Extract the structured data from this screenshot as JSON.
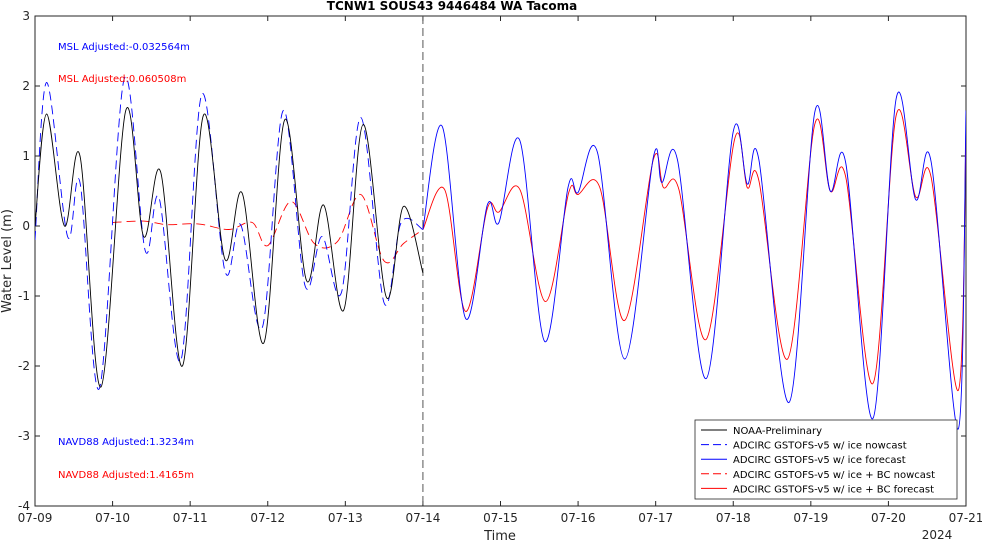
{
  "chart_data": {
    "type": "line",
    "title": "TCNW1 SOUS43 9446484 WA Tacoma",
    "xlabel": "Time",
    "ylabel": "Water Level (m)",
    "ylim": [
      -4,
      3
    ],
    "xlim": [
      0,
      12
    ],
    "x_tick_labels": [
      "07-09",
      "07-10",
      "07-11",
      "07-12",
      "07-13",
      "07-14",
      "07-15",
      "07-16",
      "07-17",
      "07-18",
      "07-19",
      "07-20",
      "07-21"
    ],
    "y_ticks": [
      -4,
      -3,
      -2,
      -1,
      0,
      1,
      2,
      3
    ],
    "year_label": "2024",
    "nowcast_end_x": 5,
    "grid": false,
    "legend_position": "bottom-right",
    "annotations": [
      {
        "text": "MSL Adjusted:-0.032564m",
        "color": "#0000ff"
      },
      {
        "text": "MSL Adjusted:0.060508m",
        "color": "#ff0000"
      },
      {
        "text": "NAVD88 Adjusted:1.3234m",
        "color": "#0000ff"
      },
      {
        "text": "NAVD88 Adjusted:1.4165m",
        "color": "#ff0000"
      }
    ],
    "series": [
      {
        "name": "NOAA-Preliminary",
        "color": "#000000",
        "dash": false,
        "x_start": 0,
        "x_end": 5,
        "points": [
          [
            0,
            0.0
          ],
          [
            0.15,
            1.6
          ],
          [
            0.38,
            0.0
          ],
          [
            0.58,
            1.0
          ],
          [
            0.85,
            -2.3
          ],
          [
            1.17,
            1.65
          ],
          [
            1.4,
            -0.15
          ],
          [
            1.62,
            0.77
          ],
          [
            1.9,
            -2.0
          ],
          [
            2.17,
            1.58
          ],
          [
            2.45,
            -0.48
          ],
          [
            2.67,
            0.47
          ],
          [
            2.95,
            -1.67
          ],
          [
            3.22,
            1.52
          ],
          [
            3.5,
            -0.78
          ],
          [
            3.72,
            0.3
          ],
          [
            3.98,
            -1.2
          ],
          [
            4.23,
            1.45
          ],
          [
            4.53,
            -1.02
          ],
          [
            4.75,
            0.28
          ],
          [
            5.0,
            -0.67
          ]
        ]
      },
      {
        "name": "ADCIRC GSTOFS-v5 w/ ice nowcast",
        "color": "#0000ff",
        "dash": true,
        "x_start": 0,
        "x_end": 5,
        "points": [
          [
            0,
            -0.2
          ],
          [
            0.15,
            2.05
          ],
          [
            0.42,
            -0.15
          ],
          [
            0.58,
            0.62
          ],
          [
            0.83,
            -2.32
          ],
          [
            1.15,
            2.1
          ],
          [
            1.42,
            -0.35
          ],
          [
            1.6,
            0.4
          ],
          [
            1.88,
            -1.92
          ],
          [
            2.15,
            1.88
          ],
          [
            2.45,
            -0.65
          ],
          [
            2.65,
            0.02
          ],
          [
            2.93,
            -1.45
          ],
          [
            3.2,
            1.65
          ],
          [
            3.48,
            -0.85
          ],
          [
            3.7,
            -0.15
          ],
          [
            3.95,
            -0.95
          ],
          [
            4.2,
            1.55
          ],
          [
            4.5,
            -1.1
          ],
          [
            4.72,
            0.05
          ],
          [
            5.0,
            -0.05
          ]
        ]
      },
      {
        "name": "ADCIRC GSTOFS-v5 w/ ice forecast",
        "color": "#0000ff",
        "dash": false,
        "x_start": 5,
        "x_end": 12,
        "points": [
          [
            5.0,
            -0.05
          ],
          [
            5.25,
            1.42
          ],
          [
            5.55,
            -1.32
          ],
          [
            5.83,
            0.3
          ],
          [
            5.98,
            0.05
          ],
          [
            6.25,
            1.22
          ],
          [
            6.57,
            -1.65
          ],
          [
            6.87,
            0.55
          ],
          [
            7.0,
            0.48
          ],
          [
            7.25,
            1.05
          ],
          [
            7.6,
            -1.9
          ],
          [
            7.97,
            0.98
          ],
          [
            8.08,
            0.62
          ],
          [
            8.28,
            0.95
          ],
          [
            8.65,
            -2.18
          ],
          [
            9.0,
            1.35
          ],
          [
            9.18,
            0.6
          ],
          [
            9.33,
            0.95
          ],
          [
            9.72,
            -2.52
          ],
          [
            10.05,
            1.62
          ],
          [
            10.25,
            0.5
          ],
          [
            10.45,
            0.9
          ],
          [
            10.8,
            -2.75
          ],
          [
            11.1,
            1.82
          ],
          [
            11.35,
            0.38
          ],
          [
            11.55,
            0.92
          ],
          [
            11.9,
            -2.9
          ],
          [
            12.0,
            1.65
          ]
        ]
      },
      {
        "name": "ADCIRC GSTOFS-v5 w/ ice + BC nowcast",
        "color": "#ff0000",
        "dash": true,
        "x_start": 1,
        "x_end": 5,
        "points": [
          [
            1.0,
            0.05
          ],
          [
            1.4,
            0.07
          ],
          [
            1.7,
            0.02
          ],
          [
            2.1,
            0.03
          ],
          [
            2.5,
            -0.05
          ],
          [
            2.8,
            0.05
          ],
          [
            3.0,
            -0.28
          ],
          [
            3.3,
            0.35
          ],
          [
            3.6,
            -0.25
          ],
          [
            3.9,
            -0.22
          ],
          [
            4.2,
            0.45
          ],
          [
            4.5,
            -0.5
          ],
          [
            4.75,
            -0.25
          ],
          [
            5.0,
            -0.05
          ]
        ]
      },
      {
        "name": "ADCIRC GSTOFS-v5 w/ ice + BC forecast",
        "color": "#ff0000",
        "dash": false,
        "x_start": 5,
        "x_end": 12,
        "points": [
          [
            5.0,
            -0.05
          ],
          [
            5.28,
            0.52
          ],
          [
            5.55,
            -1.22
          ],
          [
            5.83,
            0.25
          ],
          [
            5.98,
            0.2
          ],
          [
            6.25,
            0.52
          ],
          [
            6.58,
            -1.08
          ],
          [
            6.88,
            0.48
          ],
          [
            7.0,
            0.45
          ],
          [
            7.28,
            0.55
          ],
          [
            7.6,
            -1.35
          ],
          [
            7.97,
            0.95
          ],
          [
            8.1,
            0.55
          ],
          [
            8.3,
            0.52
          ],
          [
            8.65,
            -1.62
          ],
          [
            9.02,
            1.25
          ],
          [
            9.18,
            0.55
          ],
          [
            9.33,
            0.65
          ],
          [
            9.7,
            -1.9
          ],
          [
            10.05,
            1.45
          ],
          [
            10.25,
            0.5
          ],
          [
            10.45,
            0.7
          ],
          [
            10.8,
            -2.25
          ],
          [
            11.1,
            1.58
          ],
          [
            11.35,
            0.42
          ],
          [
            11.55,
            0.7
          ],
          [
            11.9,
            -2.35
          ],
          [
            12.0,
            1.35
          ]
        ]
      }
    ]
  }
}
